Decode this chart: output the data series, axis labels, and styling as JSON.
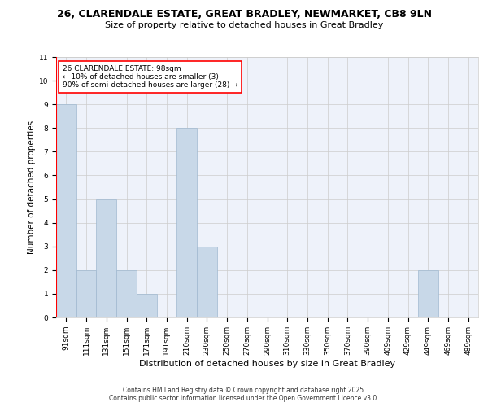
{
  "title": "26, CLARENDALE ESTATE, GREAT BRADLEY, NEWMARKET, CB8 9LN",
  "subtitle": "Size of property relative to detached houses in Great Bradley",
  "xlabel": "Distribution of detached houses by size in Great Bradley",
  "ylabel": "Number of detached properties",
  "categories": [
    "91sqm",
    "111sqm",
    "131sqm",
    "151sqm",
    "171sqm",
    "191sqm",
    "210sqm",
    "230sqm",
    "250sqm",
    "270sqm",
    "290sqm",
    "310sqm",
    "330sqm",
    "350sqm",
    "370sqm",
    "390sqm",
    "409sqm",
    "429sqm",
    "449sqm",
    "469sqm",
    "489sqm"
  ],
  "values": [
    9,
    2,
    5,
    2,
    1,
    0,
    8,
    3,
    0,
    0,
    0,
    0,
    0,
    0,
    0,
    0,
    0,
    0,
    2,
    0,
    0
  ],
  "bar_color": "#c8d8e8",
  "bar_edge_color": "#a0b8d0",
  "ylim": [
    0,
    11
  ],
  "yticks": [
    0,
    1,
    2,
    3,
    4,
    5,
    6,
    7,
    8,
    9,
    10,
    11
  ],
  "annotation_box_text": "26 CLARENDALE ESTATE: 98sqm\n← 10% of detached houses are smaller (3)\n90% of semi-detached houses are larger (28) →",
  "grid_color": "#cccccc",
  "bg_color": "#eef2fa",
  "footer_text": "Contains HM Land Registry data © Crown copyright and database right 2025.\nContains public sector information licensed under the Open Government Licence v3.0.",
  "title_fontsize": 9,
  "subtitle_fontsize": 8,
  "axis_label_fontsize": 7.5,
  "tick_fontsize": 6.5,
  "annotation_fontsize": 6.5,
  "footer_fontsize": 5.5
}
